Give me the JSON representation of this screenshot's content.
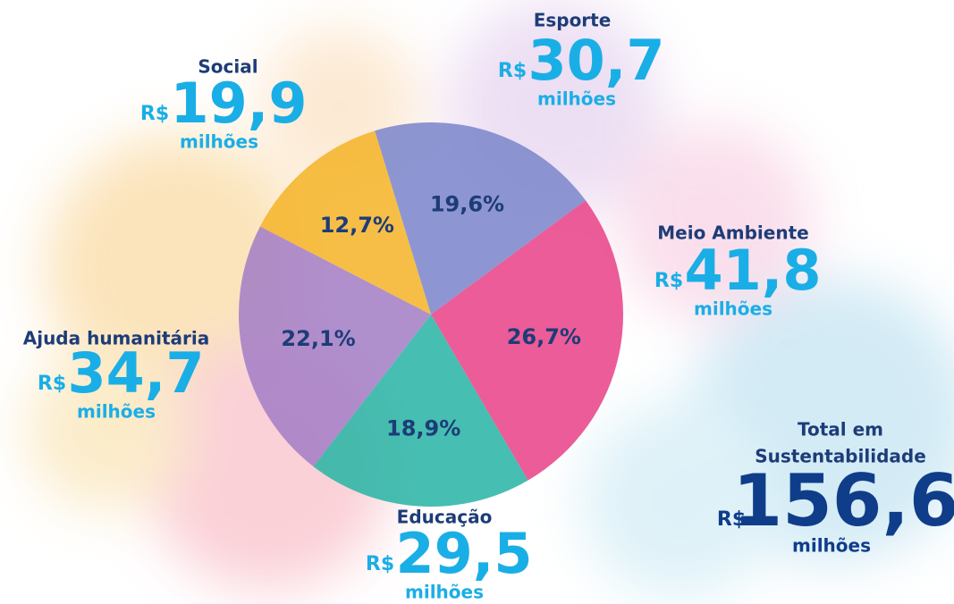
{
  "chart_data": {
    "type": "pie",
    "categories": [
      "Esporte",
      "Meio Ambiente",
      "Educação",
      "Ajuda humanitária",
      "Social"
    ],
    "values": [
      19.6,
      26.7,
      18.9,
      22.1,
      12.7
    ],
    "value_labels": [
      "19,6%",
      "26,7%",
      "18,9%",
      "22,1%",
      "12,7%"
    ],
    "colors": [
      "#7d87cc",
      "#e8468a",
      "#2cb5a6",
      "#a57fc6",
      "#f5b52c"
    ],
    "amount_labels": [
      "30,7",
      "41,8",
      "29,5",
      "34,7",
      "19,9"
    ],
    "currency": "R$",
    "unit": "milhões",
    "total": {
      "title_lines": [
        "Total em",
        "Sustentabilidade"
      ],
      "amount_label": "156,6"
    }
  }
}
